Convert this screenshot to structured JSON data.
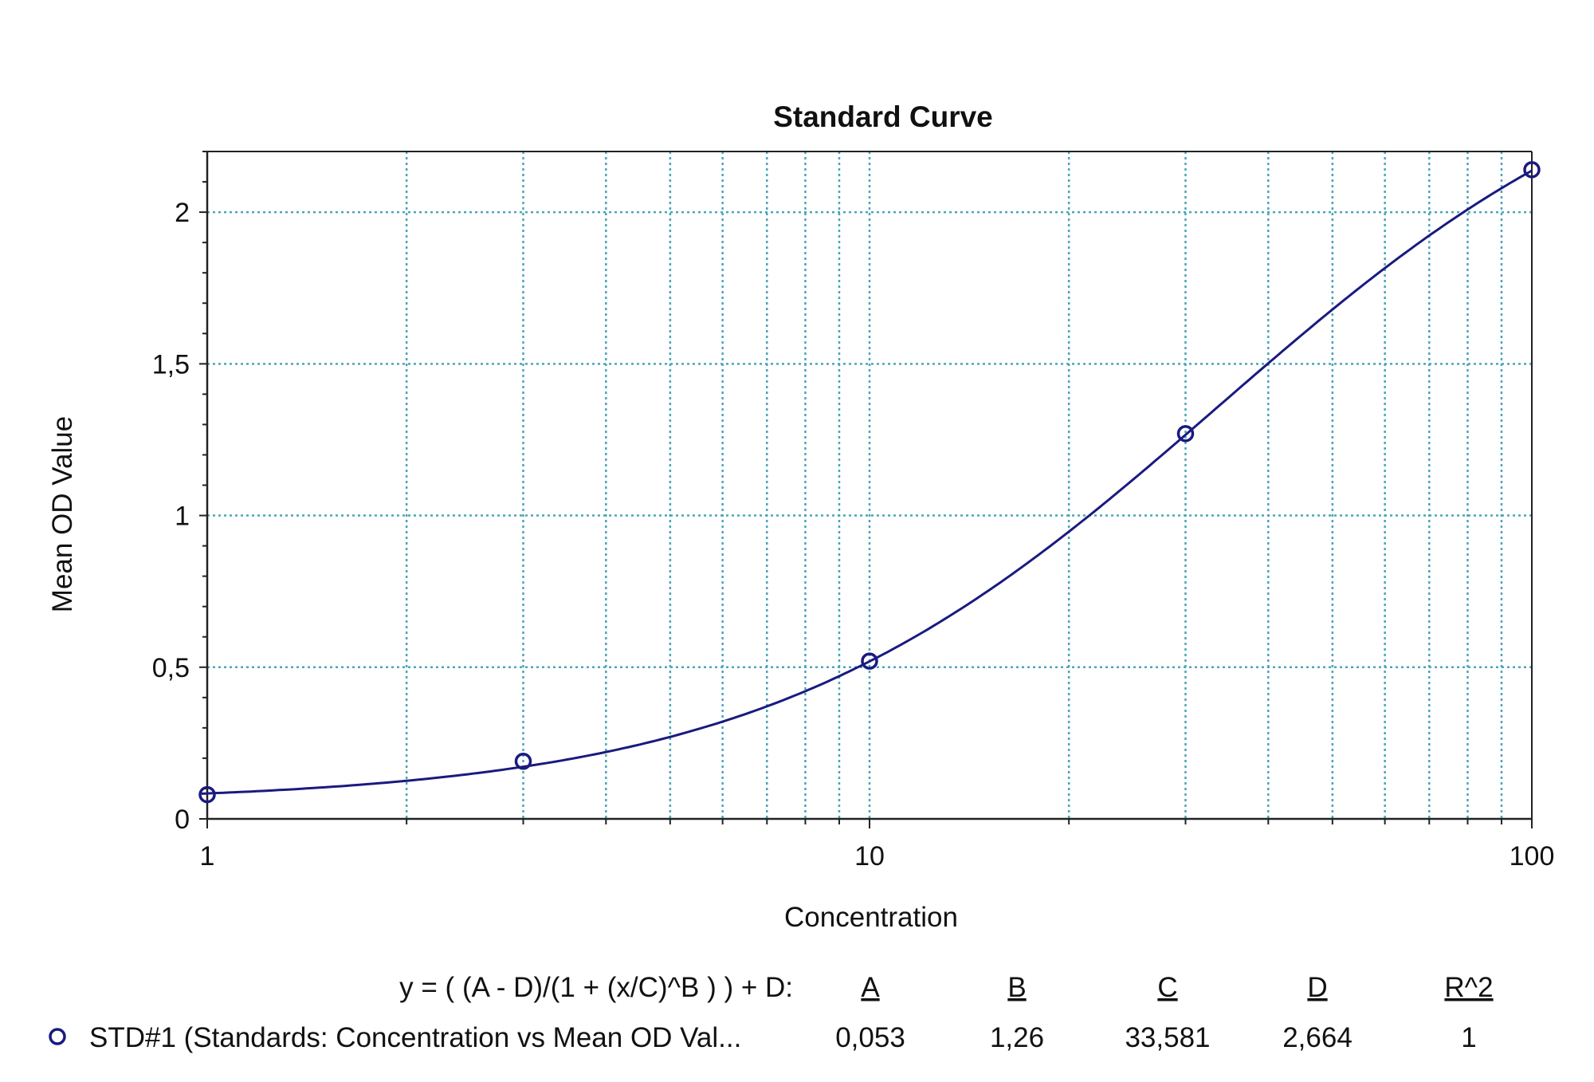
{
  "chart_data": {
    "type": "scatter",
    "title": "Standard Curve",
    "xlabel": "Concentration",
    "ylabel": "Mean OD Value",
    "x_scale": "log",
    "xlim": [
      1,
      100
    ],
    "ylim": [
      0,
      2.2
    ],
    "x_ticks": [
      {
        "value": 1,
        "label": "1"
      },
      {
        "value": 10,
        "label": "10"
      },
      {
        "value": 100,
        "label": "100"
      }
    ],
    "y_ticks": [
      {
        "value": 0,
        "label": "0"
      },
      {
        "value": 0.5,
        "label": "0,5"
      },
      {
        "value": 1,
        "label": "1"
      },
      {
        "value": 1.5,
        "label": "1,5"
      },
      {
        "value": 2,
        "label": "2"
      }
    ],
    "grid": true,
    "series": [
      {
        "name": "STD#1 (Standards: Concentration vs Mean OD Val...",
        "x": [
          1,
          3,
          10,
          30,
          100
        ],
        "y": [
          0.08,
          0.19,
          0.52,
          1.27,
          2.14
        ],
        "marker": "circle",
        "color": "#1a1a80"
      }
    ],
    "fit": {
      "equation": "y = ( (A - D)/(1 + (x/C)^B ) ) + D:",
      "headers": [
        "A",
        "B",
        "C",
        "D",
        "R^2"
      ],
      "values": [
        "0,053",
        "1,26",
        "33,581",
        "2,664",
        "1"
      ],
      "A": 0.053,
      "B": 1.26,
      "C": 33.581,
      "D": 2.664,
      "color": "#1a1a80"
    },
    "grid_color": "#4aa6b8",
    "legend_position": "bottom"
  }
}
